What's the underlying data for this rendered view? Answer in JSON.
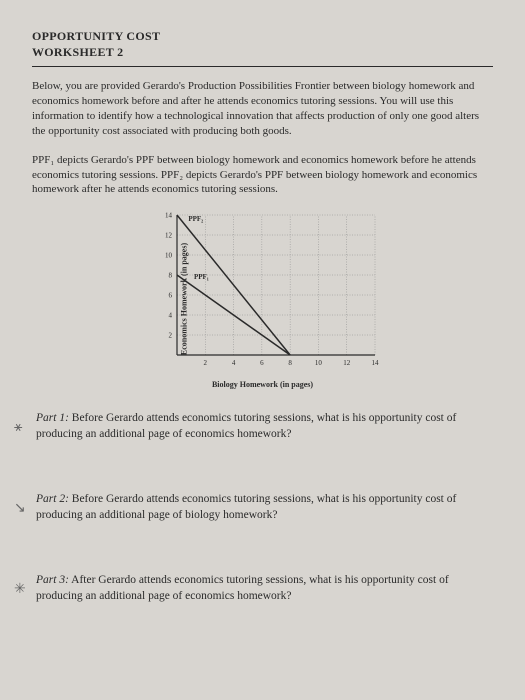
{
  "header": {
    "line1": "OPPORTUNITY COST",
    "line2": "WORKSHEET 2"
  },
  "intro": "Below, you are provided Gerardo's Production Possibilities Frontier between biology homework and economics homework before and after he attends economics tutoring sessions. You will use this information to identify how a technological innovation that affects production of only one good alters the opportunity cost associated with producing both goods.",
  "ppf_desc": "PPF₁ depicts Gerardo's PPF between biology homework and economics homework before he attends economics tutoring sessions. PPF₂ depicts Gerardo's PPF between biology homework and economics homework after he attends economics tutoring sessions.",
  "chart": {
    "type": "line",
    "x_label": "Biology Homework (in pages)",
    "y_label": "Economics Homework (in pages)",
    "x_ticks": [
      2,
      4,
      6,
      8,
      10,
      12,
      14
    ],
    "y_ticks": [
      2,
      4,
      6,
      8,
      10,
      12,
      14
    ],
    "xlim": [
      0,
      14
    ],
    "ylim": [
      0,
      14
    ],
    "grid_color": "#888888",
    "axis_color": "#2a2a2a",
    "line_color": "#2a2a2a",
    "background_color": "transparent",
    "tick_fontsize": 7,
    "label_fontsize": 8,
    "series": [
      {
        "name": "PPF₁",
        "label_text": "PPF₁",
        "points": [
          [
            0,
            8
          ],
          [
            8,
            0
          ]
        ],
        "label_pos": [
          1.2,
          7.6
        ]
      },
      {
        "name": "PPF₂",
        "label_text": "PPF₂",
        "points": [
          [
            0,
            14
          ],
          [
            8,
            0
          ]
        ],
        "label_pos": [
          0.8,
          13.4
        ]
      }
    ],
    "line_width": 1.5
  },
  "parts": [
    {
      "label": "Part 1:",
      "text": " Before Gerardo attends economics tutoring sessions, what is his opportunity cost of producing an additional page of economics homework?",
      "mark": "⚹"
    },
    {
      "label": "Part 2:",
      "text": " Before Gerardo attends economics tutoring sessions, what is his opportunity cost of producing an additional page of biology homework?",
      "mark": "↘"
    },
    {
      "label": "Part 3:",
      "text": " After Gerardo attends economics tutoring sessions, what is his opportunity cost of producing an additional page of economics homework?",
      "mark": "✳"
    }
  ]
}
